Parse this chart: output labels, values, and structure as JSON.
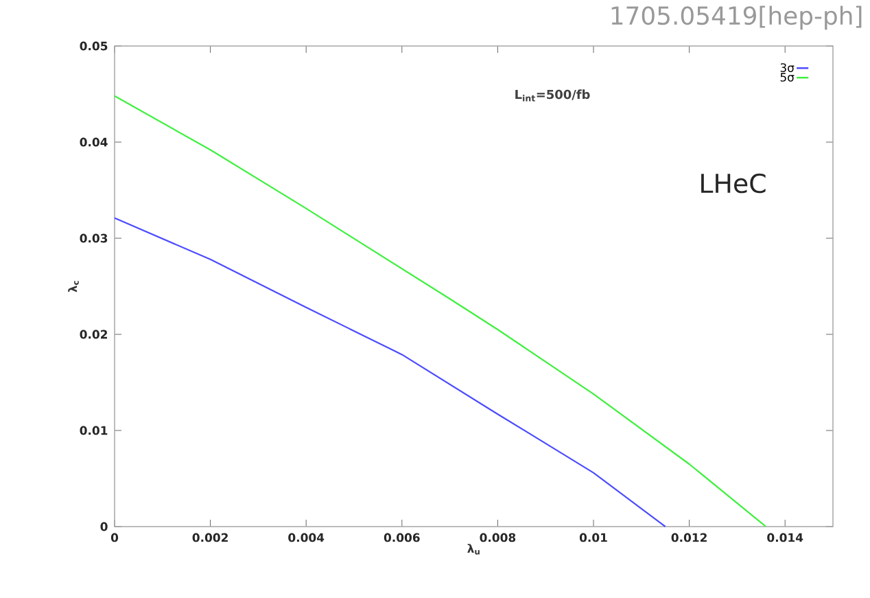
{
  "chart_data": {
    "type": "line",
    "xlabel": "λ$_{u}$",
    "ylabel": "λ$_{c}$",
    "xlim": [
      0,
      0.015
    ],
    "ylim": [
      0,
      0.05
    ],
    "xticks": [
      0,
      0.002,
      0.004,
      0.006,
      0.008,
      0.01,
      0.012,
      0.014
    ],
    "yticks": [
      0,
      0.01,
      0.02,
      0.03,
      0.04,
      0.05
    ],
    "grid": false,
    "legend": "top right",
    "line_style": "solid",
    "annotations": [
      "1705.05419[hep-ph]",
      "**L$_{int}$=500/fb**",
      "LHeC"
    ],
    "series": [
      {
        "name": "3σ",
        "color": "#4b4bff",
        "x": [
          0,
          0.002,
          0.004,
          0.006,
          0.008,
          0.01,
          0.0115
        ],
        "values": [
          0.0321,
          0.0278,
          0.0228,
          0.0179,
          0.0117,
          0.0056,
          0
        ]
      },
      {
        "name": "5σ",
        "color": "#3ef03e",
        "x": [
          0,
          0.002,
          0.004,
          0.007,
          0.008,
          0.01,
          0.012,
          0.0136
        ],
        "values": [
          0.0448,
          0.0392,
          0.0331,
          0.0237,
          0.0205,
          0.0138,
          0.0065,
          0
        ]
      }
    ]
  }
}
